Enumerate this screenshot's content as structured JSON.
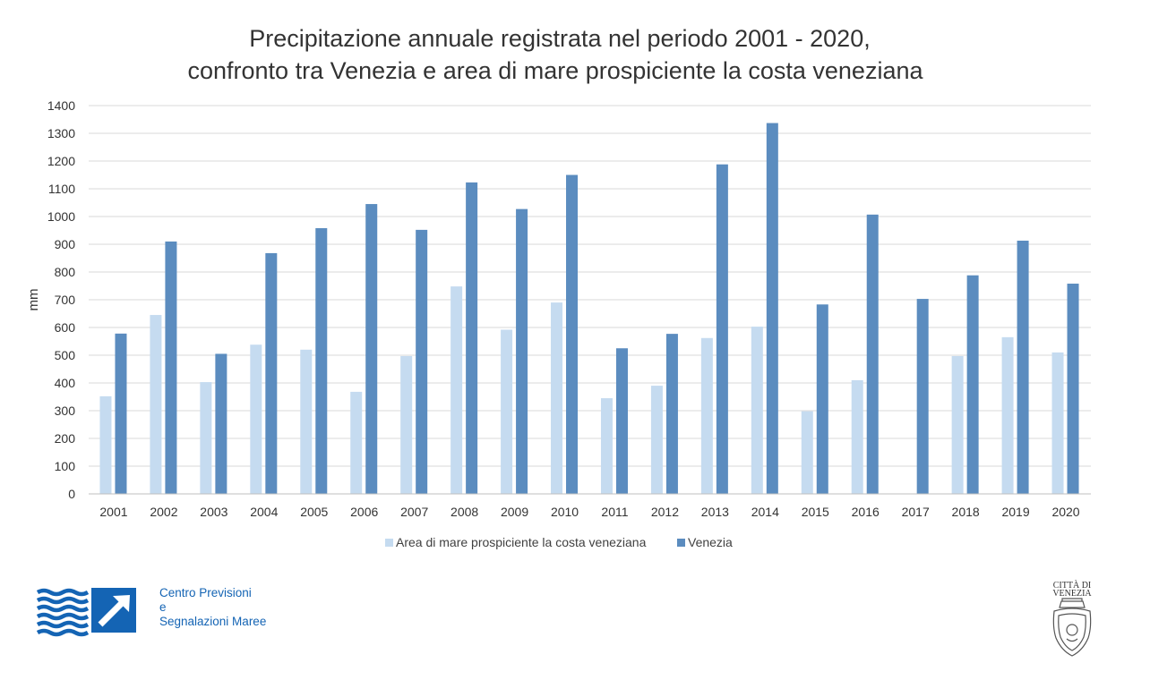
{
  "chart_data": {
    "type": "bar",
    "title_lines": [
      "Precipitazione annuale registrata nel periodo 2001 - 2020,",
      "confronto tra Venezia e area di mare prospiciente la costa veneziana"
    ],
    "xlabel": "",
    "ylabel": "mm",
    "ylim": [
      0,
      1400
    ],
    "yticks": [
      0,
      100,
      200,
      300,
      400,
      500,
      600,
      700,
      800,
      900,
      1000,
      1100,
      1200,
      1300,
      1400
    ],
    "grid": true,
    "legend_position": "bottom",
    "categories": [
      "2001",
      "2002",
      "2003",
      "2004",
      "2005",
      "2006",
      "2007",
      "2008",
      "2009",
      "2010",
      "2011",
      "2012",
      "2013",
      "2014",
      "2015",
      "2016",
      "2017",
      "2018",
      "2019",
      "2020"
    ],
    "series": [
      {
        "name": "Area di mare prospiciente la costa veneziana",
        "color": "#c5dbf0",
        "values": [
          352,
          645,
          403,
          538,
          520,
          368,
          497,
          748,
          592,
          690,
          345,
          390,
          562,
          603,
          298,
          410,
          null,
          497,
          565,
          510
        ]
      },
      {
        "name": "Venezia",
        "color": "#5b8cbf",
        "values": [
          578,
          910,
          505,
          868,
          958,
          1045,
          952,
          1123,
          1027,
          1150,
          525,
          577,
          1188,
          1337,
          683,
          1007,
          703,
          788,
          913,
          758
        ]
      }
    ]
  },
  "logos": {
    "cpsm": {
      "icon": "wave-arrow-logo",
      "color": "#1464b4",
      "lines": [
        "Centro Previsioni",
        "e",
        "Segnalazioni Maree"
      ]
    },
    "citta": {
      "icon": "venice-coat-of-arms",
      "lines": [
        "CITTÀ DI",
        "VENEZIA"
      ]
    }
  }
}
